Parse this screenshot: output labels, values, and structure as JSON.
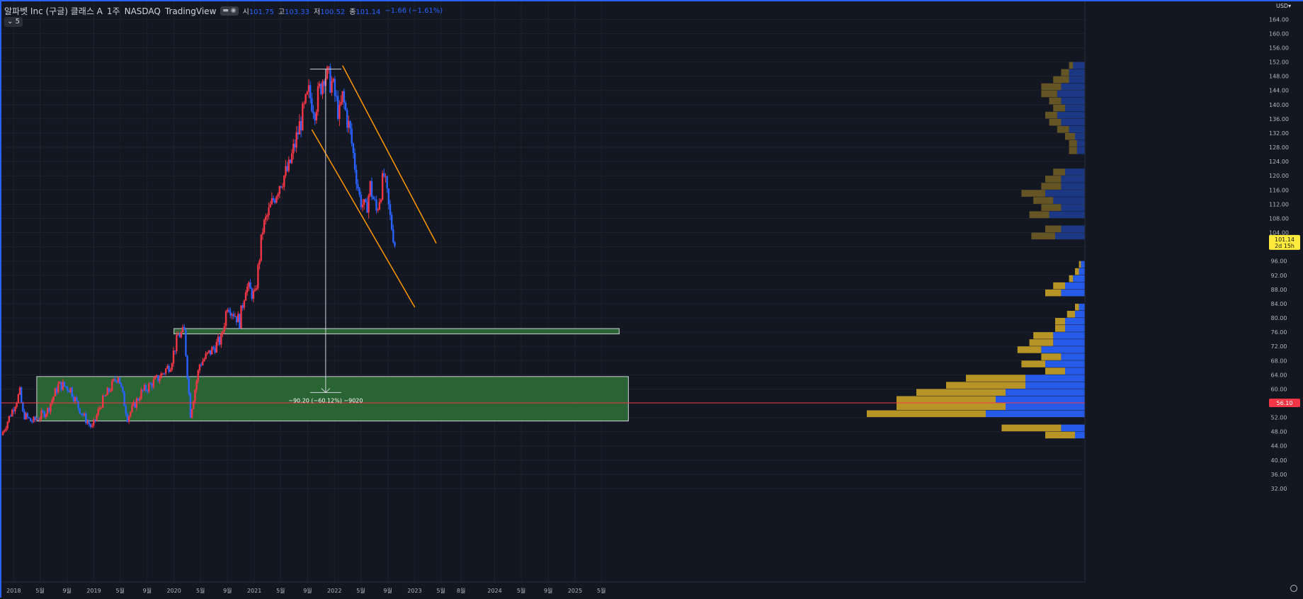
{
  "legend": {
    "symbol": "알파벳 Inc (구글) 클래스 A",
    "interval": "1주",
    "exchange": "NASDAQ",
    "brand": "TradingView",
    "open_label": "시",
    "open": "101.75",
    "high_label": "고",
    "high": "103.33",
    "low_label": "저",
    "low": "100.52",
    "close_label": "종",
    "close": "101.14",
    "change": "−1.66 (−1.61%)"
  },
  "collapse": {
    "label": "5"
  },
  "currency": "USD",
  "last_price": {
    "value": "101.14",
    "countdown": "2d 15h",
    "color": "#ffeb3b"
  },
  "line_price": {
    "value": "56.10",
    "color": "#f23645"
  },
  "measure_label": "−90.20 (−60.12%) −9020",
  "colors": {
    "up": "#f23645",
    "down": "#2962ff",
    "bg": "#131722",
    "grid": "#1e222d",
    "channel": "#ff9800",
    "zone_fill": "#2e6b36",
    "zone_stroke": "#d1d4dc"
  },
  "chart_data": {
    "type": "candlestick",
    "title": "",
    "interval": "weekly",
    "y_ticks": [
      32,
      36,
      40,
      44,
      48,
      52,
      56,
      60,
      64,
      68,
      72,
      76,
      80,
      84,
      88,
      92,
      96,
      100,
      104,
      108,
      112,
      116,
      120,
      124,
      128,
      132,
      136,
      140,
      144,
      148,
      152,
      156,
      160,
      164
    ],
    "y_tick_labels": [
      "32.00",
      "36.00",
      "40.00",
      "44.00",
      "48.00",
      "52.00",
      "",
      "60.00",
      "64.00",
      "68.00",
      "72.00",
      "76.00",
      "80.00",
      "84.00",
      "88.00",
      "92.00",
      "96.00",
      "",
      "104.00",
      "108.00",
      "112.00",
      "116.00",
      "120.00",
      "124.00",
      "128.00",
      "132.00",
      "136.00",
      "140.00",
      "144.00",
      "148.00",
      "152.00",
      "156.00",
      "160.00",
      "164.00"
    ],
    "x_ticks": [
      {
        "date": "2018-01-01",
        "label": "2018"
      },
      {
        "date": "2018-05-01",
        "label": "5월"
      },
      {
        "date": "2018-09-01",
        "label": "9월"
      },
      {
        "date": "2019-01-01",
        "label": "2019"
      },
      {
        "date": "2019-05-01",
        "label": "5월"
      },
      {
        "date": "2019-09-01",
        "label": "9월"
      },
      {
        "date": "2020-01-01",
        "label": "2020"
      },
      {
        "date": "2020-05-01",
        "label": "5월"
      },
      {
        "date": "2020-09-01",
        "label": "9월"
      },
      {
        "date": "2021-01-01",
        "label": "2021"
      },
      {
        "date": "2021-05-01",
        "label": "5월"
      },
      {
        "date": "2021-09-01",
        "label": "9월"
      },
      {
        "date": "2022-01-01",
        "label": "2022"
      },
      {
        "date": "2022-05-01",
        "label": "5월"
      },
      {
        "date": "2022-09-01",
        "label": "9월"
      },
      {
        "date": "2023-01-01",
        "label": "2023"
      },
      {
        "date": "2023-05-01",
        "label": "5월"
      },
      {
        "date": "2023-08-01",
        "label": "8월"
      },
      {
        "date": "2024-01-01",
        "label": "2024"
      },
      {
        "date": "2024-05-01",
        "label": "5월"
      },
      {
        "date": "2024-09-01",
        "label": "9월"
      },
      {
        "date": "2025-01-01",
        "label": "2025"
      },
      {
        "date": "2025-05-01",
        "label": "5월"
      }
    ],
    "close_path": [
      [
        "2017-11-06",
        47
      ],
      [
        "2017-12-04",
        51
      ],
      [
        "2018-01-01",
        55
      ],
      [
        "2018-01-29",
        59
      ],
      [
        "2018-02-12",
        53
      ],
      [
        "2018-03-19",
        51
      ],
      [
        "2018-04-02",
        51
      ],
      [
        "2018-06-04",
        54
      ],
      [
        "2018-07-23",
        61
      ],
      [
        "2018-08-13",
        61
      ],
      [
        "2018-09-17",
        60
      ],
      [
        "2018-10-22",
        55
      ],
      [
        "2018-11-19",
        52
      ],
      [
        "2018-12-24",
        49
      ],
      [
        "2019-02-04",
        56
      ],
      [
        "2019-04-22",
        64
      ],
      [
        "2019-05-13",
        58
      ],
      [
        "2019-06-03",
        52
      ],
      [
        "2019-08-05",
        59
      ],
      [
        "2019-10-21",
        63
      ],
      [
        "2019-12-16",
        67
      ],
      [
        "2020-01-20",
        75
      ],
      [
        "2020-02-17",
        76
      ],
      [
        "2020-03-16",
        53
      ],
      [
        "2020-04-27",
        67
      ],
      [
        "2020-06-08",
        70
      ],
      [
        "2020-08-03",
        74
      ],
      [
        "2020-09-01",
        84
      ],
      [
        "2020-10-26",
        79
      ],
      [
        "2020-11-23",
        89
      ],
      [
        "2021-01-04",
        86
      ],
      [
        "2021-02-08",
        105
      ],
      [
        "2021-04-26",
        118
      ],
      [
        "2021-06-07",
        122
      ],
      [
        "2021-07-26",
        134
      ],
      [
        "2021-09-06",
        143
      ],
      [
        "2021-10-04",
        139
      ],
      [
        "2021-11-15",
        149
      ],
      [
        "2021-12-20",
        146
      ],
      [
        "2022-01-24",
        137
      ],
      [
        "2022-02-07",
        142
      ],
      [
        "2022-03-14",
        132
      ],
      [
        "2022-04-25",
        114
      ],
      [
        "2022-05-23",
        110
      ],
      [
        "2022-06-13",
        117
      ],
      [
        "2022-07-11",
        110
      ],
      [
        "2022-08-15",
        120
      ],
      [
        "2022-09-12",
        108
      ],
      [
        "2022-10-03",
        101
      ]
    ],
    "horizontal_line": 56.1,
    "zones": [
      {
        "from_date": "2018-04-16",
        "to_date": "2025-09-01",
        "low": 51,
        "high": 63.5
      },
      {
        "from_date": "2020-01-01",
        "to_date": "2025-07-21",
        "low": 75.5,
        "high": 77
      }
    ],
    "channel": [
      {
        "from": [
          "2022-02-07",
          151
        ],
        "to": [
          "2023-04-10",
          101
        ]
      },
      {
        "from": [
          "2021-09-20",
          133
        ],
        "to": [
          "2023-01-02",
          83
        ]
      }
    ],
    "measure": {
      "date": "2021-11-22",
      "from": 150,
      "to": 60,
      "change": -90.2,
      "pct": -60.12
    },
    "volume_profile": [
      [
        47,
        0.015,
        0.005
      ],
      [
        49,
        0.03,
        0.012
      ],
      [
        53,
        0.06,
        0.05
      ],
      [
        55,
        0.055,
        0.04
      ],
      [
        57,
        0.05,
        0.045
      ],
      [
        59,
        0.045,
        0.04
      ],
      [
        61,
        0.04,
        0.03
      ],
      [
        63,
        0.03,
        0.03
      ],
      [
        65,
        0.01,
        0.01
      ],
      [
        67,
        0.012,
        0.02
      ],
      [
        69,
        0.01,
        0.012
      ],
      [
        71,
        0.012,
        0.022
      ],
      [
        73,
        0.012,
        0.016
      ],
      [
        75,
        0.01,
        0.016
      ],
      [
        77,
        0.005,
        0.01
      ],
      [
        79,
        0.005,
        0.01
      ],
      [
        81,
        0.004,
        0.005
      ],
      [
        83,
        0.002,
        0.003
      ],
      [
        87,
        0.008,
        0.012
      ],
      [
        89,
        0.006,
        0.01
      ],
      [
        91,
        0.002,
        0.006
      ],
      [
        93,
        0.002,
        0.003
      ],
      [
        95,
        0.001,
        0.002
      ],
      [
        103,
        0.012,
        0.015
      ],
      [
        105,
        0.008,
        0.012
      ],
      [
        109,
        0.01,
        0.018
      ],
      [
        111,
        0.01,
        0.012
      ],
      [
        113,
        0.01,
        0.016
      ],
      [
        115,
        0.012,
        0.02
      ],
      [
        117,
        0.01,
        0.012
      ],
      [
        119,
        0.008,
        0.012
      ],
      [
        121,
        0.006,
        0.01
      ],
      [
        127,
        0.004,
        0.004
      ],
      [
        129,
        0.004,
        0.004
      ],
      [
        131,
        0.005,
        0.005
      ],
      [
        133,
        0.006,
        0.008
      ],
      [
        135,
        0.006,
        0.012
      ],
      [
        137,
        0.006,
        0.014
      ],
      [
        139,
        0.006,
        0.01
      ],
      [
        141,
        0.006,
        0.012
      ],
      [
        143,
        0.008,
        0.014
      ],
      [
        145,
        0.01,
        0.012
      ],
      [
        147,
        0.008,
        0.008
      ],
      [
        149,
        0.004,
        0.008
      ],
      [
        151,
        0.002,
        0.006
      ]
    ]
  }
}
